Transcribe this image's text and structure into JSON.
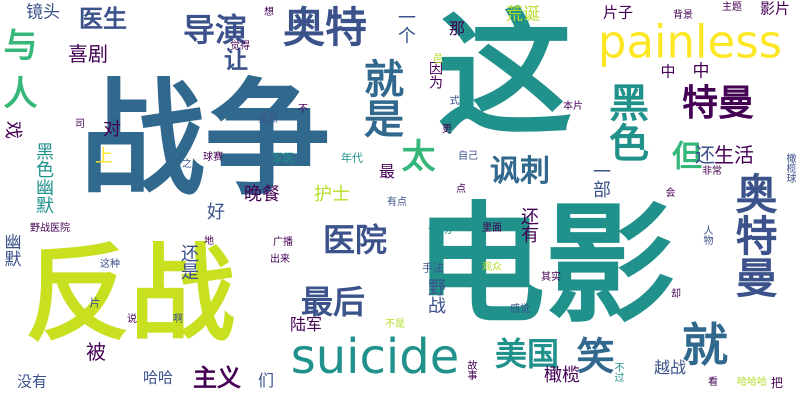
{
  "palette": {
    "dark_purple": "#440154",
    "indigo": "#3b528b",
    "teal_blue": "#31688e",
    "teal": "#21918c",
    "green_teal": "#1f9e89",
    "green": "#35b779",
    "light_green": "#6ece58",
    "yellow_green": "#b5de2b",
    "yellow": "#fde725"
  },
  "words": [
    {
      "id": "zhanzheng",
      "text": "战争"
    },
    {
      "id": "zheng_big",
      "text": "这"
    },
    {
      "id": "dianying",
      "text": "电影"
    },
    {
      "id": "fanzhan",
      "text": "反战"
    },
    {
      "id": "painless",
      "text": "painless"
    },
    {
      "id": "aote",
      "text": "奥特"
    },
    {
      "id": "daoyan",
      "text": "导演"
    },
    {
      "id": "jiushi",
      "text": "就是"
    },
    {
      "id": "heise",
      "text": "黑色"
    },
    {
      "id": "teman",
      "text": "特曼"
    },
    {
      "id": "yiyishu",
      "text": "一个"
    },
    {
      "id": "na",
      "text": "那"
    },
    {
      "id": "huangdan",
      "text": "荒诞"
    },
    {
      "id": "pianzi",
      "text": "片子"
    },
    {
      "id": "beijing",
      "text": "背景"
    },
    {
      "id": "zhuti",
      "text": "主题"
    },
    {
      "id": "yingpian",
      "text": "影片"
    },
    {
      "id": "jingtou",
      "text": "镜头"
    },
    {
      "id": "yisheng",
      "text": "医生"
    },
    {
      "id": "yu",
      "text": "与"
    },
    {
      "id": "ren",
      "text": "人"
    },
    {
      "id": "xiju",
      "text": "喜剧"
    },
    {
      "id": "rang",
      "text": "让"
    },
    {
      "id": "yinwei",
      "text": "因为"
    },
    {
      "id": "zhong",
      "text": "中"
    },
    {
      "id": "heiseyoumo",
      "text": "黑色幽默"
    },
    {
      "id": "tai",
      "text": "太"
    },
    {
      "id": "fengci",
      "text": "讽刺"
    },
    {
      "id": "dan",
      "text": "但"
    },
    {
      "id": "aoteman",
      "text": "奥特曼"
    },
    {
      "id": "shenghuo",
      "text": "生活"
    },
    {
      "id": "dui",
      "text": "对"
    },
    {
      "id": "shang",
      "text": "上"
    },
    {
      "id": "huan",
      "text": "还"
    },
    {
      "id": "wancan",
      "text": "晚餐"
    },
    {
      "id": "hushi",
      "text": "护士"
    },
    {
      "id": "zui",
      "text": "最"
    },
    {
      "id": "yibu",
      "text": "一部"
    },
    {
      "id": "haiyou",
      "text": "还有"
    },
    {
      "id": "hao",
      "text": "好"
    },
    {
      "id": "yiyuan",
      "text": "医院"
    },
    {
      "id": "zuihou",
      "text": "最后"
    },
    {
      "id": "jiu",
      "text": "就"
    },
    {
      "id": "suicide",
      "text": "suicide"
    },
    {
      "id": "meiguo",
      "text": "美国"
    },
    {
      "id": "xiao",
      "text": "笑"
    },
    {
      "id": "youmo",
      "text": "幽默"
    },
    {
      "id": "yezhanyiyuan",
      "text": "野战医院"
    },
    {
      "id": "haishi",
      "text": "还是"
    },
    {
      "id": "lujun",
      "text": "陆军"
    },
    {
      "id": "yezhan",
      "text": "野战"
    },
    {
      "id": "ganlan",
      "text": "橄榄"
    },
    {
      "id": "bei",
      "text": "被"
    },
    {
      "id": "haha",
      "text": "哈哈"
    },
    {
      "id": "zhuyi",
      "text": "主义"
    },
    {
      "id": "meiyou",
      "text": "没有"
    },
    {
      "id": "yuezhan",
      "text": "越战"
    },
    {
      "id": "kan",
      "text": "看"
    },
    {
      "id": "hahaha",
      "text": "哈哈哈"
    },
    {
      "id": "ba",
      "text": "把"
    },
    {
      "id": "junyi",
      "text": "军医"
    },
    {
      "id": "ganlanqiu",
      "text": "橄榄球"
    },
    {
      "id": "qiusai",
      "text": "球赛"
    },
    {
      "id": "niandai",
      "text": "年代"
    },
    {
      "id": "suiran",
      "text": "虽然"
    },
    {
      "id": "benpian",
      "text": "本片"
    },
    {
      "id": "dian",
      "text": "点"
    },
    {
      "id": "youdian",
      "text": "有点"
    },
    {
      "id": "yichang",
      "text": "一场"
    },
    {
      "id": "limian",
      "text": "里面"
    },
    {
      "id": "shoufa",
      "text": "手法"
    },
    {
      "id": "guanzhong",
      "text": "观众"
    },
    {
      "id": "qishi",
      "text": "其实"
    },
    {
      "id": "ganjue",
      "text": "感觉"
    },
    {
      "id": "bushi",
      "text": "不是"
    },
    {
      "id": "gushi",
      "text": "故事"
    },
    {
      "id": "buguo",
      "text": "不过"
    },
    {
      "id": "zhezhong",
      "text": "这种"
    },
    {
      "id": "chulai",
      "text": "出来"
    },
    {
      "id": "guangbo",
      "text": "广播"
    },
    {
      "id": "pian",
      "text": "片"
    },
    {
      "id": "shuo",
      "text": "说"
    },
    {
      "id": "a",
      "text": "啊"
    },
    {
      "id": "que",
      "text": "却"
    },
    {
      "id": "men",
      "text": "们"
    },
    {
      "id": "hui",
      "text": "会"
    },
    {
      "id": "renwu",
      "text": "人物"
    },
    {
      "id": "feichang",
      "text": "非常"
    },
    {
      "id": "ziji",
      "text": "自己"
    },
    {
      "id": "geng",
      "text": "更"
    },
    {
      "id": "shi",
      "text": "式"
    },
    {
      "id": "juede",
      "text": "觉得"
    },
    {
      "id": "xiang",
      "text": "想"
    },
    {
      "id": "bu",
      "text": "不"
    },
    {
      "id": "xi",
      "text": "戏"
    },
    {
      "id": "si",
      "text": "司"
    },
    {
      "id": "zhi",
      "text": "之"
    },
    {
      "id": "di",
      "text": "地"
    },
    {
      "id": "yi",
      "text": "邑"
    },
    {
      "id": "ting",
      "text": "庭"
    }
  ]
}
